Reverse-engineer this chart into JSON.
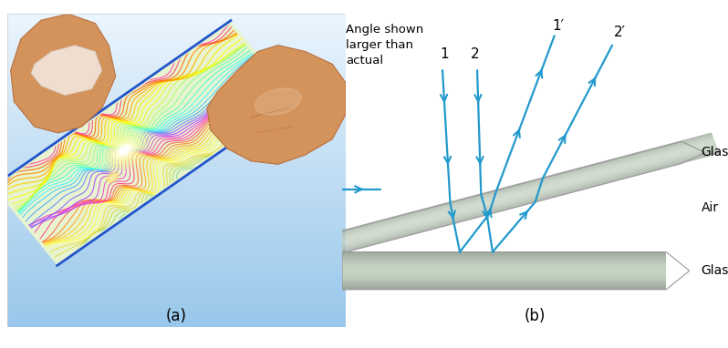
{
  "fig_width": 7.98,
  "fig_height": 3.82,
  "bg_color": "#ffffff",
  "label_a": "(a)",
  "label_b": "(b)",
  "annotation_text": "Angle shown\nlarger than\nactual",
  "air_label": "Air",
  "glass_label": "Glass",
  "ray_color": "#2299cc",
  "skin_color": "#d4935a",
  "skin_dark": "#b87040",
  "skin_light": "#e8c090",
  "nail_color": "#f0ddd0",
  "slide_bg": "#e8f4d8",
  "glass_gray": "#b8c8b0",
  "blue_edge": "#2255cc",
  "rainbow_colors": [
    "#88dd88",
    "#aadd66",
    "#ccdd44",
    "#dddd44",
    "#eedd44",
    "#ffff88",
    "#ffff44",
    "#ffee44",
    "#ffdd22",
    "#ffcc22",
    "#ffaa22",
    "#ff8822",
    "#ff6644",
    "#ff4488",
    "#ff44aa",
    "#ee44cc",
    "#cc44ee",
    "#aa44ff",
    "#8866ff",
    "#6688ff",
    "#44aaff",
    "#44ccff",
    "#44eeff",
    "#44ffee",
    "#44ffcc",
    "#66ffaa",
    "#88ff88",
    "#aaff66",
    "#ccff44",
    "#eeff22",
    "#ffff00",
    "#ffee00",
    "#ffcc00",
    "#ffaa00",
    "#ff8800",
    "#ff6600",
    "#ff4466",
    "#ff44aa"
  ]
}
